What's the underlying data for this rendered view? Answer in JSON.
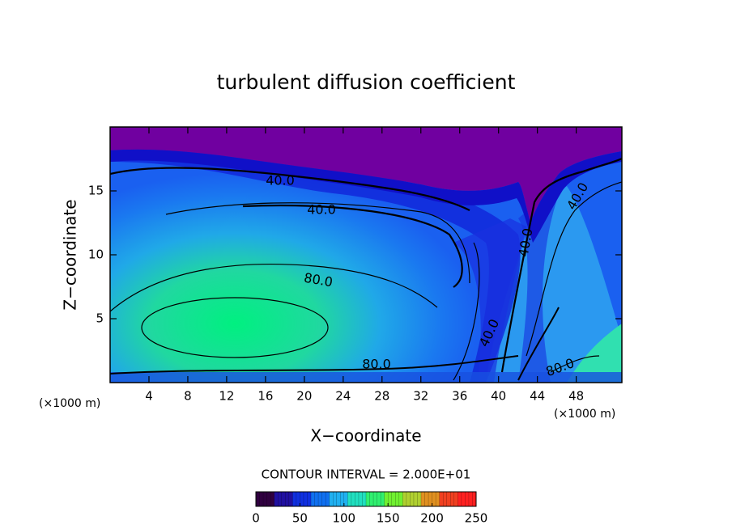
{
  "chart_data": {
    "type": "contour",
    "title": "turbulent diffusion coefficient",
    "xlabel": "X−coordinate",
    "ylabel": "Z−coordinate",
    "xunit": "(×1000 m)",
    "yunit": "(×1000 m)",
    "xlim": [
      0,
      52.7
    ],
    "ylim": [
      0,
      20
    ],
    "xticks": [
      4,
      8,
      12,
      16,
      20,
      24,
      28,
      32,
      36,
      40,
      44,
      48
    ],
    "yticks": [
      5,
      10,
      15
    ],
    "contour_labels": [
      "40.0",
      "40.0",
      "80.0",
      "80.0",
      "40.0",
      "40.0",
      "40.0",
      "80.0"
    ],
    "contour_interval": "CONTOUR INTERVAL = 2.000E+01",
    "clim": [
      0,
      250
    ],
    "cticks": [
      0,
      50,
      100,
      150,
      200,
      250
    ],
    "colormap": [
      "#300040",
      "#2010a0",
      "#1030e0",
      "#1070f0",
      "#20b0f0",
      "#20e0c0",
      "#30f070",
      "#70f030",
      "#b0d030",
      "#e09020",
      "#f04020",
      "#ff2020"
    ]
  }
}
